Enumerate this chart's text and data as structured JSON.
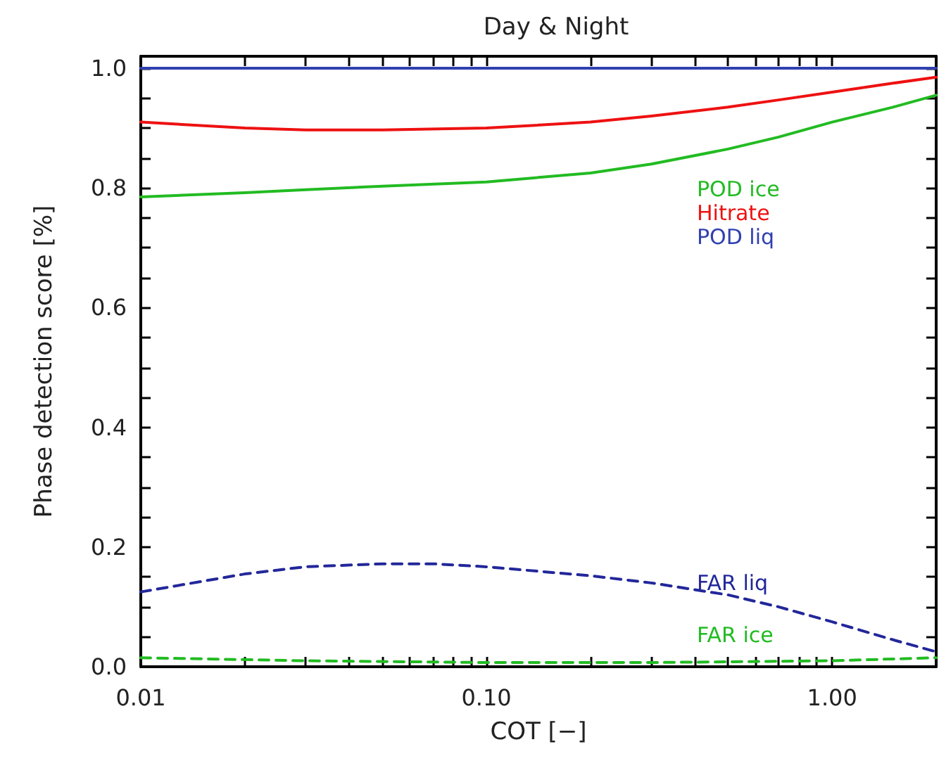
{
  "chart_data": {
    "type": "line",
    "title": "Day & Night",
    "xlabel": "COT [−]",
    "ylabel": "Phase detection score [%]",
    "log": "x",
    "xlim": [
      0.01,
      2
    ],
    "xticks": [
      {
        "value": 0.01,
        "label": "0.01"
      },
      {
        "value": 0.02,
        "label": null
      },
      {
        "value": 0.03,
        "label": null
      },
      {
        "value": 0.04,
        "label": null
      },
      {
        "value": 0.05,
        "label": null
      },
      {
        "value": 0.06,
        "label": null
      },
      {
        "value": 0.07,
        "label": null
      },
      {
        "value": 0.08,
        "label": null
      },
      {
        "value": 0.09,
        "label": null
      },
      {
        "value": 0.1,
        "label": "0.10"
      },
      {
        "value": 0.2,
        "label": null
      },
      {
        "value": 0.3,
        "label": null
      },
      {
        "value": 0.4,
        "label": null
      },
      {
        "value": 0.5,
        "label": null
      },
      {
        "value": 0.6,
        "label": null
      },
      {
        "value": 0.7,
        "label": null
      },
      {
        "value": 0.8,
        "label": null
      },
      {
        "value": 0.9,
        "label": null
      },
      {
        "value": 1,
        "label": "1.00"
      },
      {
        "value": 2,
        "label": null
      }
    ],
    "ylim": [
      0,
      1.02
    ],
    "yticks": [
      {
        "value": 0,
        "label": "0.0"
      },
      {
        "value": 0.2,
        "label": "0.2"
      },
      {
        "value": 0.4,
        "label": "0.4"
      },
      {
        "value": 0.6,
        "label": "0.6"
      },
      {
        "value": 0.8,
        "label": "0.8"
      },
      {
        "value": 1,
        "label": "1.0"
      }
    ],
    "grid": false,
    "legend": "right",
    "marker": "none",
    "series": [
      {
        "name": "POD ice",
        "color": "#22bb22",
        "line_style": "solid",
        "x": [
          0.01,
          0.02,
          0.03,
          0.05,
          0.1,
          0.2,
          0.3,
          0.5,
          0.7,
          1,
          1.5,
          2
        ],
        "values": [
          0.785,
          0.792,
          0.797,
          0.803,
          0.81,
          0.825,
          0.84,
          0.865,
          0.885,
          0.91,
          0.935,
          0.955
        ]
      },
      {
        "name": "Hitrate",
        "color": "#ee1111",
        "line_style": "solid",
        "x": [
          0.01,
          0.02,
          0.03,
          0.05,
          0.1,
          0.2,
          0.3,
          0.5,
          0.7,
          1,
          1.5,
          2
        ],
        "values": [
          0.91,
          0.9,
          0.897,
          0.897,
          0.9,
          0.91,
          0.92,
          0.935,
          0.947,
          0.96,
          0.975,
          0.985
        ]
      },
      {
        "name": "POD liq",
        "color": "#3040b0",
        "line_style": "solid",
        "x": [
          0.01,
          0.1,
          1,
          2
        ],
        "values": [
          1.0,
          1.0,
          1.0,
          1.0
        ]
      },
      {
        "name": "FAR liq",
        "color": "#22279a",
        "line_style": "dashed",
        "x": [
          0.01,
          0.02,
          0.03,
          0.05,
          0.07,
          0.1,
          0.2,
          0.3,
          0.5,
          0.7,
          1,
          1.5,
          2
        ],
        "values": [
          0.125,
          0.155,
          0.167,
          0.172,
          0.172,
          0.167,
          0.152,
          0.14,
          0.12,
          0.1,
          0.075,
          0.045,
          0.025
        ]
      },
      {
        "name": "FAR ice",
        "color": "#22bb22",
        "line_style": "dashed",
        "x": [
          0.01,
          0.03,
          0.1,
          0.3,
          1,
          2
        ],
        "values": [
          0.015,
          0.01,
          0.007,
          0.007,
          0.01,
          0.015
        ]
      }
    ]
  }
}
